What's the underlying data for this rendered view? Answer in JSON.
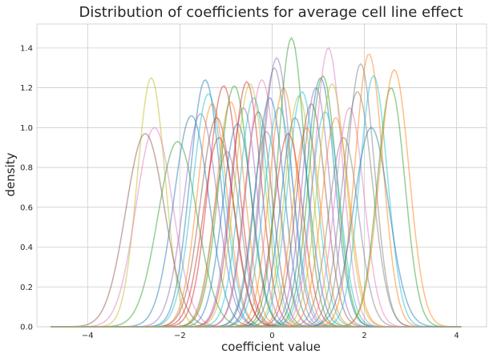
{
  "chart_data": {
    "type": "line",
    "title": "Distribution of coefficients for average cell line effect",
    "xlabel": "coefficient value",
    "ylabel": "density",
    "xlim": [
      -5.1,
      4.65
    ],
    "ylim": [
      0,
      1.52
    ],
    "xticks": [
      -4,
      -2,
      0,
      2,
      4
    ],
    "yticks": [
      0.0,
      0.2,
      0.4,
      0.6,
      0.8,
      1.0,
      1.2,
      1.4
    ],
    "xtick_labels": [
      "−4",
      "−2",
      "0",
      "2",
      "4"
    ],
    "ytick_labels": [
      "0.0",
      "0.2",
      "0.4",
      "0.6",
      "0.8",
      "1.0",
      "1.2",
      "1.4"
    ],
    "grid": true,
    "legend": "none",
    "series_description": "Kernel density estimates of coefficients; each series given by its peak location (mu), spread (sd) and peak height",
    "series": [
      {
        "mu": -2.62,
        "sd": 0.3,
        "peak": 1.25
      },
      {
        "mu": -2.55,
        "sd": 0.4,
        "peak": 1.0
      },
      {
        "mu": -2.75,
        "sd": 0.42,
        "peak": 0.97
      },
      {
        "mu": -2.05,
        "sd": 0.42,
        "peak": 0.93
      },
      {
        "mu": -1.75,
        "sd": 0.38,
        "peak": 1.06
      },
      {
        "mu": -1.55,
        "sd": 0.36,
        "peak": 1.07
      },
      {
        "mu": -1.45,
        "sd": 0.33,
        "peak": 1.24
      },
      {
        "mu": -1.38,
        "sd": 0.34,
        "peak": 1.17
      },
      {
        "mu": -1.3,
        "sd": 0.32,
        "peak": 1.12
      },
      {
        "mu": -1.2,
        "sd": 0.35,
        "peak": 1.05
      },
      {
        "mu": -1.15,
        "sd": 0.34,
        "peak": 0.95
      },
      {
        "mu": -1.05,
        "sd": 0.33,
        "peak": 1.21
      },
      {
        "mu": -0.98,
        "sd": 0.3,
        "peak": 0.88
      },
      {
        "mu": -0.9,
        "sd": 0.31,
        "peak": 1.13
      },
      {
        "mu": -0.82,
        "sd": 0.33,
        "peak": 1.21
      },
      {
        "mu": -0.75,
        "sd": 0.32,
        "peak": 1.02
      },
      {
        "mu": -0.62,
        "sd": 0.3,
        "peak": 1.1
      },
      {
        "mu": -0.55,
        "sd": 0.31,
        "peak": 1.23
      },
      {
        "mu": -0.48,
        "sd": 0.32,
        "peak": 1.22
      },
      {
        "mu": -0.4,
        "sd": 0.31,
        "peak": 1.15
      },
      {
        "mu": -0.3,
        "sd": 0.3,
        "peak": 1.08
      },
      {
        "mu": -0.22,
        "sd": 0.32,
        "peak": 1.24
      },
      {
        "mu": -0.12,
        "sd": 0.3,
        "peak": 0.98
      },
      {
        "mu": -0.05,
        "sd": 0.31,
        "peak": 1.15
      },
      {
        "mu": 0.05,
        "sd": 0.3,
        "peak": 1.3
      },
      {
        "mu": 0.1,
        "sd": 0.31,
        "peak": 1.35
      },
      {
        "mu": 0.15,
        "sd": 0.32,
        "peak": 1.1
      },
      {
        "mu": 0.25,
        "sd": 0.3,
        "peak": 1.2
      },
      {
        "mu": 0.35,
        "sd": 0.31,
        "peak": 0.97
      },
      {
        "mu": 0.42,
        "sd": 0.29,
        "peak": 1.45
      },
      {
        "mu": 0.5,
        "sd": 0.31,
        "peak": 1.05
      },
      {
        "mu": 0.58,
        "sd": 0.3,
        "peak": 1.16
      },
      {
        "mu": 0.65,
        "sd": 0.31,
        "peak": 1.18
      },
      {
        "mu": 0.75,
        "sd": 0.3,
        "peak": 1.0
      },
      {
        "mu": 0.85,
        "sd": 0.31,
        "peak": 1.12
      },
      {
        "mu": 0.95,
        "sd": 0.3,
        "peak": 1.2
      },
      {
        "mu": 1.05,
        "sd": 0.31,
        "peak": 1.25
      },
      {
        "mu": 1.1,
        "sd": 0.3,
        "peak": 1.26
      },
      {
        "mu": 1.15,
        "sd": 0.31,
        "peak": 1.08
      },
      {
        "mu": 1.22,
        "sd": 0.3,
        "peak": 1.4
      },
      {
        "mu": 1.3,
        "sd": 0.31,
        "peak": 1.22
      },
      {
        "mu": 1.38,
        "sd": 0.3,
        "peak": 1.05
      },
      {
        "mu": 1.55,
        "sd": 0.32,
        "peak": 0.95
      },
      {
        "mu": 1.68,
        "sd": 0.31,
        "peak": 1.1
      },
      {
        "mu": 1.85,
        "sd": 0.33,
        "peak": 1.18
      },
      {
        "mu": 1.92,
        "sd": 0.3,
        "peak": 1.32
      },
      {
        "mu": 2.1,
        "sd": 0.3,
        "peak": 1.37
      },
      {
        "mu": 2.2,
        "sd": 0.3,
        "peak": 1.26
      },
      {
        "mu": 2.15,
        "sd": 0.38,
        "peak": 1.0
      },
      {
        "mu": 2.58,
        "sd": 0.3,
        "peak": 1.2
      },
      {
        "mu": 2.65,
        "sd": 0.32,
        "peak": 1.29
      }
    ],
    "colors": [
      "#1f77b4",
      "#ff7f0e",
      "#2ca02c",
      "#d62728",
      "#9467bd",
      "#8c564b",
      "#e377c2",
      "#7f7f7f",
      "#bcbd22",
      "#17becf"
    ],
    "series_colors": [
      8,
      6,
      5,
      2,
      0,
      4,
      0,
      9,
      1,
      5,
      3,
      3,
      7,
      1,
      2,
      0,
      4,
      3,
      8,
      9,
      5,
      6,
      7,
      0,
      7,
      4,
      9,
      1,
      3,
      2,
      0,
      8,
      9,
      1,
      5,
      4,
      0,
      2,
      9,
      6,
      8,
      1,
      7,
      6,
      7,
      7,
      1,
      9,
      0,
      2,
      1
    ]
  }
}
